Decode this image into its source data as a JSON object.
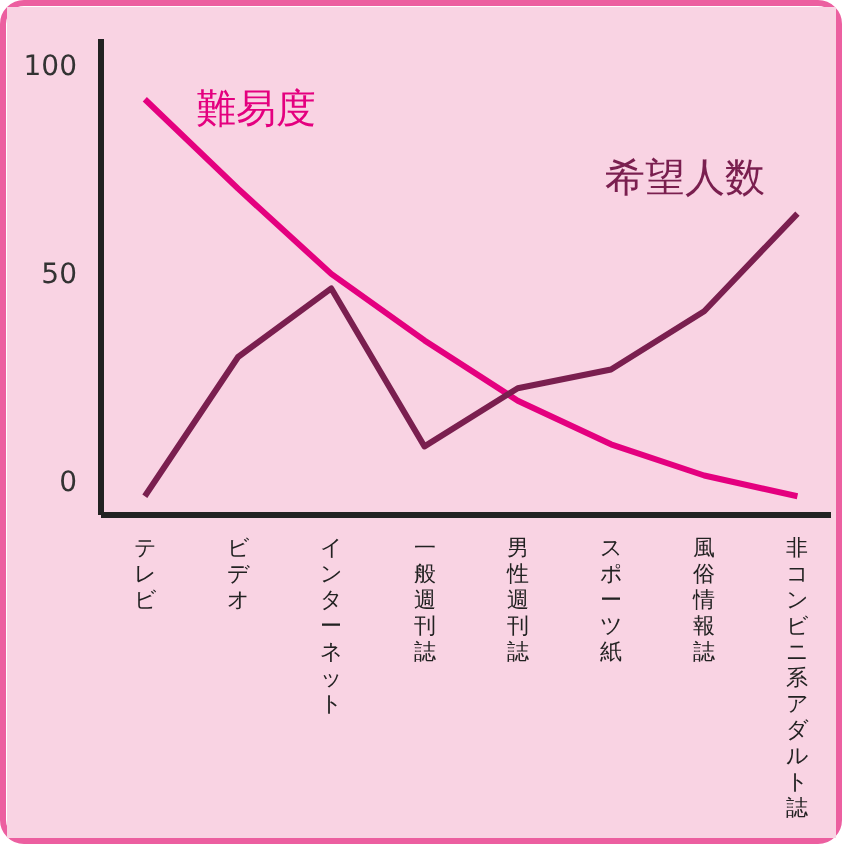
{
  "chart_data": {
    "type": "line",
    "categories": [
      "テレビ",
      "ビデオ",
      "インターネット",
      "一般週刊誌",
      "男性週刊誌",
      "スポーツ紙",
      "風俗情報誌",
      "非コンビニ系アダルト誌"
    ],
    "series": [
      {
        "name": "難易度",
        "color": "#e4007f",
        "values": [
          91.5,
          70,
          49.5,
          33.5,
          19,
          8.5,
          1,
          -4
        ]
      },
      {
        "name": "希望人数",
        "color": "#7a1f4f",
        "values": [
          -4,
          29.5,
          46,
          8,
          22,
          26.5,
          40.5,
          64
        ]
      }
    ],
    "ylim": [
      -8.5,
      106
    ],
    "yticks": [
      0,
      50,
      100
    ],
    "grid": false,
    "marker": "none",
    "line_style": "solid"
  }
}
